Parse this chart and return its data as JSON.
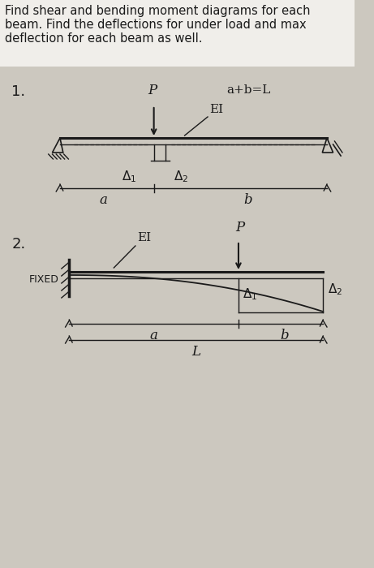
{
  "bg_color": "#ccc8bf",
  "text_color": "#1a1a1a",
  "header_text_lines": [
    "Find shear and bending moment diagrams for each",
    "beam. Find the deflections for under load and max",
    "deflection for each beam as well."
  ],
  "header_fontsize": 10.5,
  "beam1_label": "1.",
  "beam2_label": "2.",
  "lw_thick": 2.2,
  "lw_thin": 1.0
}
